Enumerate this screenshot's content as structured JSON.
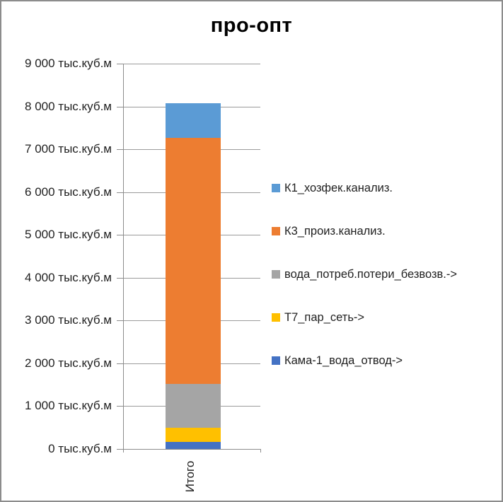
{
  "frame": {
    "background_color": "#FFFFFF",
    "border_color": "#8C8C8C"
  },
  "chart_data": {
    "type": "bar",
    "stacked": true,
    "title": "про-опт",
    "categories": [
      "Итого"
    ],
    "xlabel": "",
    "ylabel": "",
    "value_unit": "тыс.куб.м",
    "ylim": [
      0,
      9000
    ],
    "ytick_step": 1000,
    "ytick_labels_top_to_bottom": [
      "9 000 тыс.куб.м",
      "8 000 тыс.куб.м",
      "7 000 тыс.куб.м",
      "6 000 тыс.куб.м",
      "5 000 тыс.куб.м",
      "4 000 тыс.куб.м",
      "3 000 тыс.куб.м",
      "2 000 тыс.куб.м",
      "1 000 тыс.куб.м",
      "0 тыс.куб.м"
    ],
    "grid": true,
    "legend_position": "right",
    "series_bottom_to_top": [
      {
        "name": "Кама-1_вода_отвод->",
        "color": "#4472C4",
        "values": [
          160
        ]
      },
      {
        "name": "Т7_пар_сеть->",
        "color": "#FFC000",
        "values": [
          340
        ]
      },
      {
        "name": "вода_потреб.потери_безвозв.->",
        "color": "#A5A5A5",
        "values": [
          1020
        ]
      },
      {
        "name": "К3_произ.канализ.",
        "color": "#ED7D31",
        "values": [
          5740
        ]
      },
      {
        "name": "К1_хозфек.канализ.",
        "color": "#5B9BD5",
        "values": [
          820
        ]
      }
    ],
    "legend_order_top_to_bottom": [
      "К1_хозфек.канализ.",
      "К3_произ.канализ.",
      "вода_потреб.потери_безвозв.->",
      "Т7_пар_сеть->",
      "Кама-1_вода_отвод->"
    ],
    "colors": {
      "axis": "#8C8C8C",
      "gridline": "#9B9B9B",
      "text": "#1F1F1F",
      "title_text": "#000000"
    }
  }
}
